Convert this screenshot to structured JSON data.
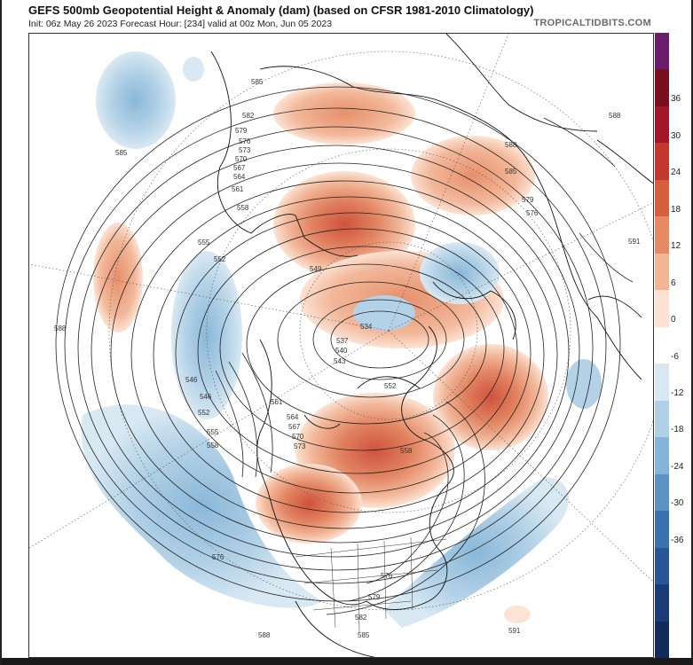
{
  "header": {
    "title": "GEFS 500mb Geopotential Height & Anomaly (dam) (based on CFSR 1981-2010 Climatology)",
    "subtitle": "Init: 06z May 26 2023   Forecast Hour: [234]   valid at 00z Mon, Jun 05 2023",
    "brand": "TROPICALTIDBITS.COM"
  },
  "colorbar": {
    "labels": [
      "36",
      "30",
      "24",
      "18",
      "12",
      "6",
      "0",
      "-6",
      "-12",
      "-18",
      "-24",
      "-30",
      "-36"
    ],
    "colors": [
      "#6b1d6b",
      "#7a0f1f",
      "#a3162a",
      "#c2382e",
      "#d65f3e",
      "#e68a63",
      "#f2b596",
      "#fce2d2",
      "#ffffff",
      "#d7e8f3",
      "#b0d0e6",
      "#84b4d7",
      "#5a93c4",
      "#3a72ae",
      "#285595",
      "#1b3a78",
      "#132a5c"
    ]
  },
  "contour_labels": [
    "585",
    "582",
    "579",
    "576",
    "573",
    "570",
    "567",
    "564",
    "561",
    "558",
    "555",
    "552",
    "549",
    "546",
    "543",
    "540",
    "537",
    "534",
    "588",
    "591"
  ]
}
